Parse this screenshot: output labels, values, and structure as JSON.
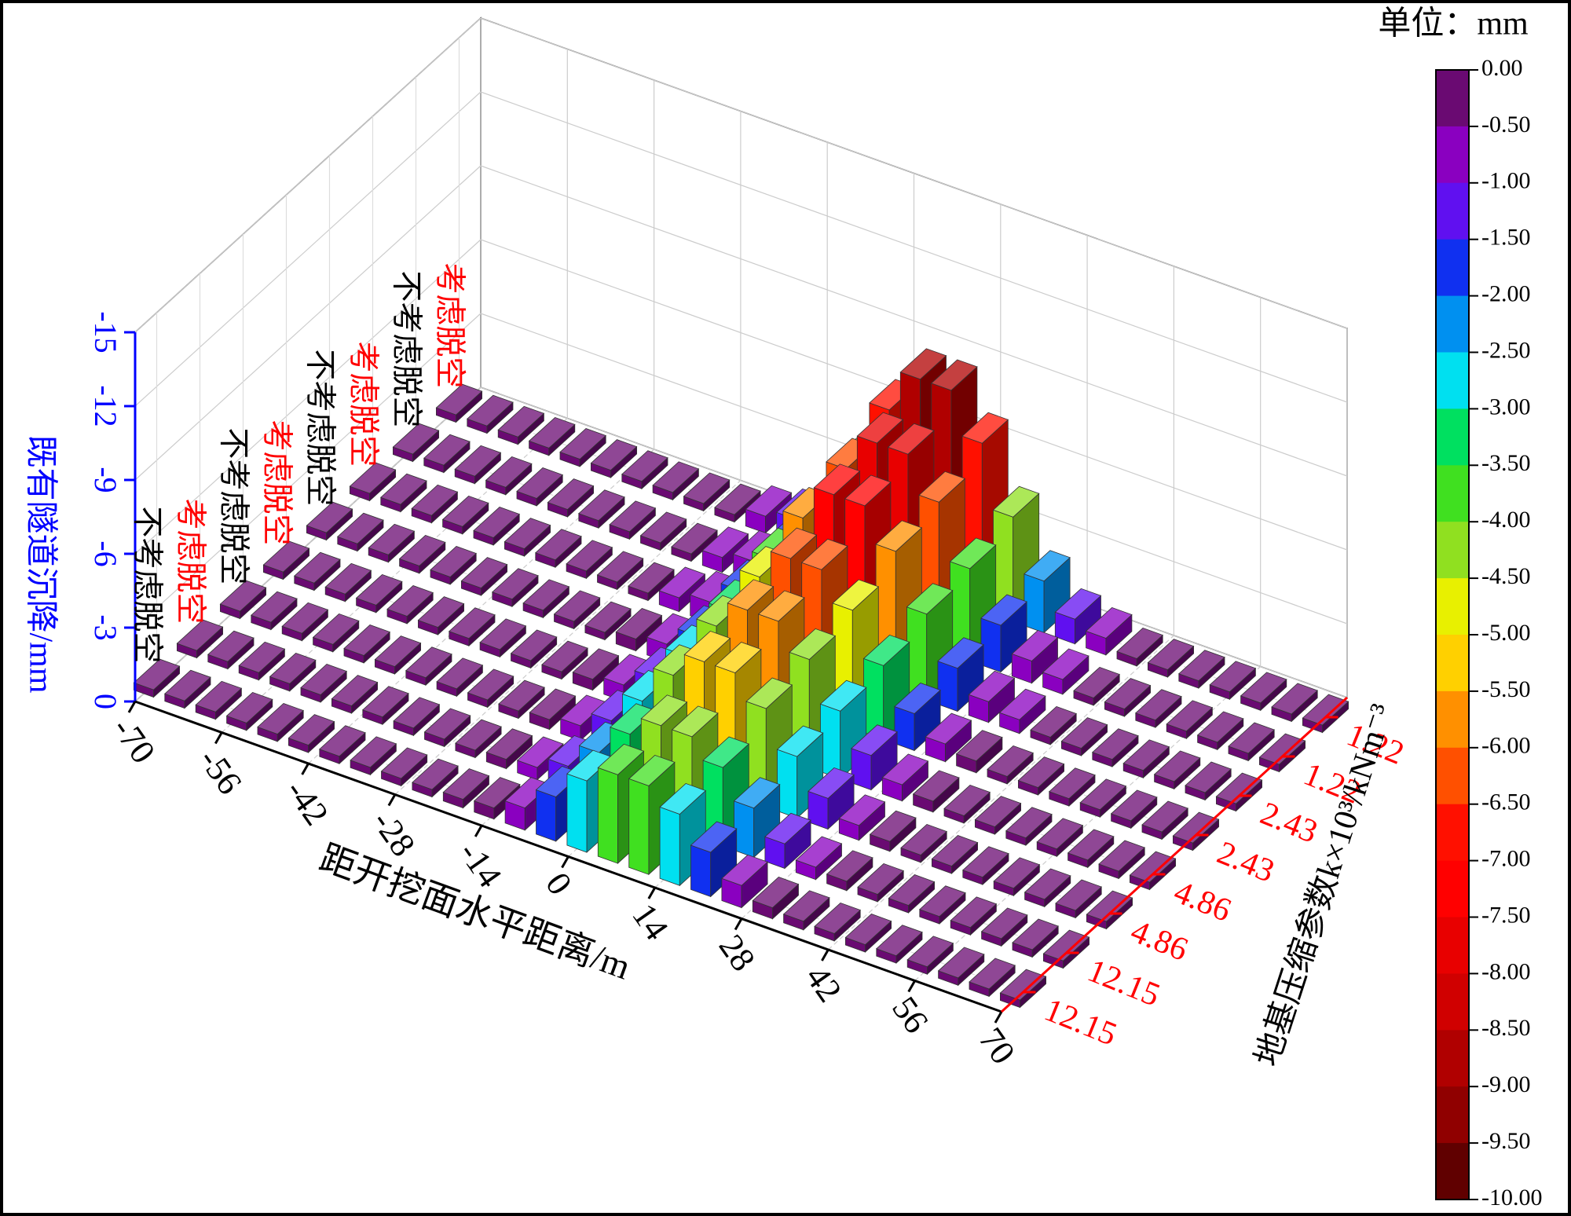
{
  "chart_data": {
    "type": "bar3d",
    "x_title": "距开挖面水平距离/m",
    "y_title": "既有隧道沉降/mm",
    "depth_title": "地基压缩参数k×10³/kNm⁻³",
    "x": [
      -70,
      -65,
      -60,
      -55,
      -50,
      -45,
      -40,
      -35,
      -30,
      -25,
      -20,
      -15,
      -10,
      -5,
      0,
      5,
      10,
      15,
      20,
      25,
      30,
      35,
      40,
      45,
      50,
      55,
      60,
      65,
      70
    ],
    "xlim": [
      -70,
      70
    ],
    "xticks": [
      -70,
      -56,
      -42,
      -28,
      -14,
      0,
      14,
      28,
      42,
      56,
      70
    ],
    "ylim": [
      0,
      -15
    ],
    "yticks": [
      0,
      -3,
      -6,
      -9,
      -12,
      -15
    ],
    "y_axis_color": "#0000ff",
    "depth_axis_color": "#ff0000",
    "grid": true,
    "series": [
      {
        "name": "不考虑脱空",
        "k": "12.15",
        "label_color": "#000000",
        "values": [
          -0.3,
          -0.3,
          -0.3,
          -0.3,
          -0.3,
          -0.3,
          -0.3,
          -0.3,
          -0.3,
          -0.3,
          -0.35,
          -0.45,
          -0.9,
          -1.8,
          -2.9,
          -3.6,
          -3.6,
          -2.9,
          -1.8,
          -0.9,
          -0.45,
          -0.35,
          -0.3,
          -0.3,
          -0.3,
          -0.3,
          -0.3,
          -0.3,
          -0.3
        ]
      },
      {
        "name": "考虑脱空",
        "k": "12.15",
        "label_color": "#ff0000",
        "values": [
          -0.3,
          -0.3,
          -0.3,
          -0.3,
          -0.3,
          -0.3,
          -0.3,
          -0.3,
          -0.3,
          -0.3,
          -0.38,
          -0.5,
          -1.0,
          -2.0,
          -3.2,
          -4.0,
          -4.0,
          -3.2,
          -2.0,
          -1.0,
          -0.5,
          -0.38,
          -0.3,
          -0.3,
          -0.3,
          -0.3,
          -0.3,
          -0.3,
          -0.3
        ]
      },
      {
        "name": "不考虑脱空",
        "k": "4.86",
        "label_color": "#000000",
        "values": [
          -0.3,
          -0.3,
          -0.3,
          -0.3,
          -0.3,
          -0.3,
          -0.3,
          -0.3,
          -0.3,
          -0.3,
          -0.4,
          -0.6,
          -1.25,
          -2.5,
          -4.0,
          -5.0,
          -5.0,
          -4.0,
          -2.5,
          -1.25,
          -0.6,
          -0.4,
          -0.3,
          -0.3,
          -0.3,
          -0.3,
          -0.3,
          -0.3,
          -0.3
        ]
      },
      {
        "name": "考虑脱空",
        "k": "4.86",
        "label_color": "#ff0000",
        "values": [
          -0.3,
          -0.3,
          -0.3,
          -0.3,
          -0.3,
          -0.3,
          -0.3,
          -0.3,
          -0.3,
          -0.3,
          -0.44,
          -0.66,
          -1.4,
          -2.75,
          -4.4,
          -5.5,
          -5.5,
          -4.4,
          -2.75,
          -1.4,
          -0.66,
          -0.44,
          -0.3,
          -0.3,
          -0.3,
          -0.3,
          -0.3,
          -0.3,
          -0.3
        ]
      },
      {
        "name": "不考虑脱空",
        "k": "2.43",
        "label_color": "#000000",
        "values": [
          -0.3,
          -0.3,
          -0.3,
          -0.3,
          -0.3,
          -0.3,
          -0.3,
          -0.3,
          -0.3,
          -0.3,
          -0.48,
          -0.72,
          -1.5,
          -3.0,
          -4.8,
          -6.0,
          -6.0,
          -4.8,
          -3.0,
          -1.5,
          -0.72,
          -0.48,
          -0.3,
          -0.3,
          -0.3,
          -0.3,
          -0.3,
          -0.3,
          -0.3
        ]
      },
      {
        "name": "考虑脱空",
        "k": "2.43",
        "label_color": "#ff0000",
        "values": [
          -0.3,
          -0.3,
          -0.3,
          -0.3,
          -0.3,
          -0.3,
          -0.3,
          -0.3,
          -0.3,
          -0.3,
          -0.56,
          -0.84,
          -1.75,
          -3.5,
          -5.6,
          -7.0,
          -7.0,
          -5.6,
          -3.5,
          -1.75,
          -0.84,
          -0.56,
          -0.3,
          -0.3,
          -0.3,
          -0.3,
          -0.3,
          -0.3,
          -0.3
        ]
      },
      {
        "name": "不考虑脱空",
        "k": "1.22",
        "label_color": "#000000",
        "values": [
          -0.3,
          -0.3,
          -0.3,
          -0.3,
          -0.3,
          -0.3,
          -0.3,
          -0.3,
          -0.3,
          -0.3,
          -0.6,
          -0.9,
          -1.9,
          -3.75,
          -6.0,
          -7.5,
          -7.5,
          -6.0,
          -3.75,
          -1.9,
          -0.9,
          -0.6,
          -0.3,
          -0.3,
          -0.3,
          -0.3,
          -0.3,
          -0.3,
          -0.3
        ]
      },
      {
        "name": "考虑脱空",
        "k": "1.22",
        "label_color": "#ff0000",
        "values": [
          -0.3,
          -0.3,
          -0.3,
          -0.3,
          -0.3,
          -0.3,
          -0.3,
          -0.3,
          -0.3,
          -0.3,
          -0.68,
          -1.0,
          -2.1,
          -4.25,
          -6.8,
          -8.5,
          -8.5,
          -6.8,
          -4.25,
          -2.1,
          -1.0,
          -0.68,
          -0.3,
          -0.3,
          -0.3,
          -0.3,
          -0.3,
          -0.3,
          -0.3
        ]
      }
    ],
    "colorbar": {
      "title": "单位：mm",
      "clim": [
        0,
        -10
      ],
      "colors": [
        "#6a0a72",
        "#8a00c0",
        "#6010f0",
        "#1030f0",
        "#0090f0",
        "#00e0f0",
        "#00e060",
        "#40e020",
        "#90e020",
        "#e8f000",
        "#ffd000",
        "#ff9000",
        "#ff5000",
        "#ff1000",
        "#ff0000",
        "#e80000",
        "#d00000",
        "#b00000",
        "#900000",
        "#600000"
      ],
      "ticks": [
        {
          "value": 0,
          "label": "0.00"
        },
        {
          "value": -0.5,
          "label": "-0.50"
        },
        {
          "value": -1,
          "label": "-1.00"
        },
        {
          "value": -1.5,
          "label": "-1.50"
        },
        {
          "value": -2,
          "label": "-2.00"
        },
        {
          "value": -2.5,
          "label": "-2.50"
        },
        {
          "value": -3,
          "label": "-3.00"
        },
        {
          "value": -3.5,
          "label": "-3.50"
        },
        {
          "value": -4,
          "label": "-4.00"
        },
        {
          "value": -4.5,
          "label": "-4.50"
        },
        {
          "value": -5,
          "label": "-5.00"
        },
        {
          "value": -5.5,
          "label": "-5.50"
        },
        {
          "value": -6,
          "label": "-6.00"
        },
        {
          "value": -6.5,
          "label": "-6.50"
        },
        {
          "value": -7,
          "label": "-7.00"
        },
        {
          "value": -7.5,
          "label": "-7.50"
        },
        {
          "value": -8,
          "label": "-8.00"
        },
        {
          "value": -8.5,
          "label": "-8.50"
        },
        {
          "value": -9,
          "label": "-9.00"
        },
        {
          "value": -9.5,
          "label": "-9.50"
        },
        {
          "value": -10,
          "label": "-10.00"
        }
      ]
    }
  }
}
